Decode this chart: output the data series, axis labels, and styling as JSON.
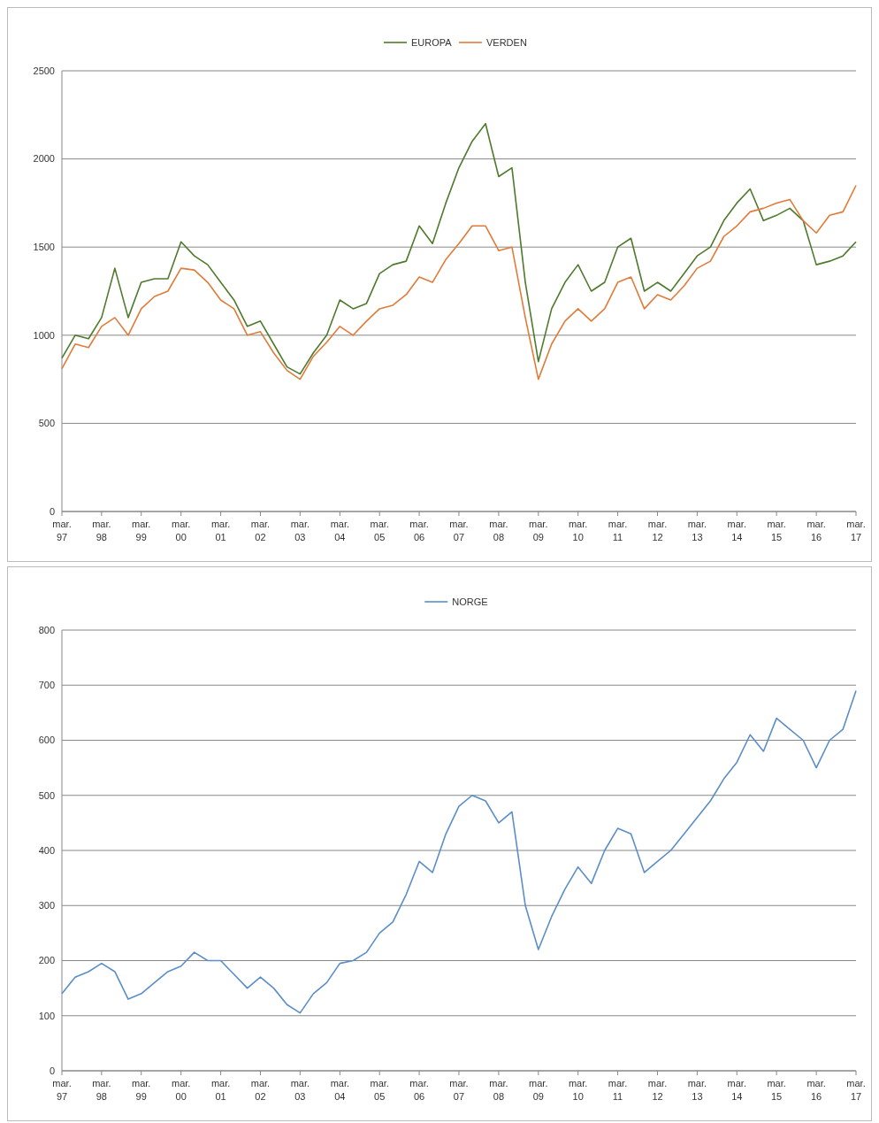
{
  "chart_data": [
    {
      "type": "line",
      "legend": "top",
      "grid": "y",
      "ylim": [
        0,
        2500
      ],
      "yticks": [
        0,
        500,
        1000,
        1500,
        2000,
        2500
      ],
      "xlim": [
        "1997-03",
        "2017-03"
      ],
      "xticks": [
        {
          "value": "1997-03",
          "label": "mar. 97"
        },
        {
          "value": "1998-03",
          "label": "mar. 98"
        },
        {
          "value": "1999-03",
          "label": "mar. 99"
        },
        {
          "value": "2000-03",
          "label": "mar. 00"
        },
        {
          "value": "2001-03",
          "label": "mar. 01"
        },
        {
          "value": "2002-03",
          "label": "mar. 02"
        },
        {
          "value": "2003-03",
          "label": "mar. 03"
        },
        {
          "value": "2004-03",
          "label": "mar. 04"
        },
        {
          "value": "2005-03",
          "label": "mar. 05"
        },
        {
          "value": "2006-03",
          "label": "mar. 06"
        },
        {
          "value": "2007-03",
          "label": "mar. 07"
        },
        {
          "value": "2008-03",
          "label": "mar. 08"
        },
        {
          "value": "2009-03",
          "label": "mar. 09"
        },
        {
          "value": "2010-03",
          "label": "mar. 10"
        },
        {
          "value": "2011-03",
          "label": "mar. 11"
        },
        {
          "value": "2012-03",
          "label": "mar. 12"
        },
        {
          "value": "2013-03",
          "label": "mar. 13"
        },
        {
          "value": "2014-03",
          "label": "mar. 14"
        },
        {
          "value": "2015-03",
          "label": "mar. 15"
        },
        {
          "value": "2016-03",
          "label": "mar. 16"
        },
        {
          "value": "2017-03",
          "label": "mar. 17"
        }
      ],
      "x": [
        "1997-03",
        "1997-07",
        "1997-11",
        "1998-03",
        "1998-07",
        "1998-11",
        "1999-03",
        "1999-07",
        "1999-11",
        "2000-03",
        "2000-07",
        "2000-11",
        "2001-03",
        "2001-07",
        "2001-11",
        "2002-03",
        "2002-07",
        "2002-11",
        "2003-03",
        "2003-07",
        "2003-11",
        "2004-03",
        "2004-07",
        "2004-11",
        "2005-03",
        "2005-07",
        "2005-11",
        "2006-03",
        "2006-07",
        "2006-11",
        "2007-03",
        "2007-07",
        "2007-11",
        "2008-03",
        "2008-07",
        "2008-11",
        "2009-03",
        "2009-07",
        "2009-11",
        "2010-03",
        "2010-07",
        "2010-11",
        "2011-03",
        "2011-07",
        "2011-11",
        "2012-03",
        "2012-07",
        "2012-11",
        "2013-03",
        "2013-07",
        "2013-11",
        "2014-03",
        "2014-07",
        "2014-11",
        "2015-03",
        "2015-07",
        "2015-11",
        "2016-03",
        "2016-07",
        "2016-11",
        "2017-03"
      ],
      "series": [
        {
          "name": "EUROPA",
          "color": "#4e7a2c",
          "values": [
            870,
            1000,
            980,
            1100,
            1380,
            1100,
            1300,
            1320,
            1320,
            1530,
            1450,
            1400,
            1300,
            1200,
            1050,
            1080,
            950,
            820,
            780,
            900,
            1000,
            1200,
            1150,
            1180,
            1350,
            1400,
            1420,
            1620,
            1520,
            1750,
            1950,
            2100,
            2200,
            1900,
            1950,
            1300,
            850,
            1150,
            1300,
            1400,
            1250,
            1300,
            1500,
            1550,
            1250,
            1300,
            1250,
            1350,
            1450,
            1500,
            1650,
            1750,
            1830,
            1650,
            1680,
            1720,
            1650,
            1400,
            1420,
            1450,
            1530
          ]
        },
        {
          "name": "VERDEN",
          "color": "#e07b39",
          "values": [
            810,
            950,
            930,
            1050,
            1100,
            1000,
            1150,
            1220,
            1250,
            1380,
            1370,
            1300,
            1200,
            1150,
            1000,
            1020,
            900,
            800,
            750,
            880,
            960,
            1050,
            1000,
            1080,
            1150,
            1170,
            1230,
            1330,
            1300,
            1430,
            1520,
            1620,
            1620,
            1480,
            1500,
            1100,
            750,
            950,
            1080,
            1150,
            1080,
            1150,
            1300,
            1330,
            1150,
            1230,
            1200,
            1280,
            1380,
            1420,
            1560,
            1620,
            1700,
            1720,
            1750,
            1770,
            1650,
            1580,
            1680,
            1700,
            1850
          ]
        }
      ]
    },
    {
      "type": "line",
      "legend": "top",
      "grid": "y",
      "ylim": [
        0,
        800
      ],
      "yticks": [
        0,
        100,
        200,
        300,
        400,
        500,
        600,
        700,
        800
      ],
      "xlim": [
        "1997-03",
        "2017-03"
      ],
      "xticks": [
        {
          "value": "1997-03",
          "label": "mar. 97"
        },
        {
          "value": "1998-03",
          "label": "mar. 98"
        },
        {
          "value": "1999-03",
          "label": "mar. 99"
        },
        {
          "value": "2000-03",
          "label": "mar. 00"
        },
        {
          "value": "2001-03",
          "label": "mar. 01"
        },
        {
          "value": "2002-03",
          "label": "mar. 02"
        },
        {
          "value": "2003-03",
          "label": "mar. 03"
        },
        {
          "value": "2004-03",
          "label": "mar. 04"
        },
        {
          "value": "2005-03",
          "label": "mar. 05"
        },
        {
          "value": "2006-03",
          "label": "mar. 06"
        },
        {
          "value": "2007-03",
          "label": "mar. 07"
        },
        {
          "value": "2008-03",
          "label": "mar. 08"
        },
        {
          "value": "2009-03",
          "label": "mar. 09"
        },
        {
          "value": "2010-03",
          "label": "mar. 10"
        },
        {
          "value": "2011-03",
          "label": "mar. 11"
        },
        {
          "value": "2012-03",
          "label": "mar. 12"
        },
        {
          "value": "2013-03",
          "label": "mar. 13"
        },
        {
          "value": "2014-03",
          "label": "mar. 14"
        },
        {
          "value": "2015-03",
          "label": "mar. 15"
        },
        {
          "value": "2016-03",
          "label": "mar. 16"
        },
        {
          "value": "2017-03",
          "label": "mar. 17"
        }
      ],
      "x": [
        "1997-03",
        "1997-07",
        "1997-11",
        "1998-03",
        "1998-07",
        "1998-11",
        "1999-03",
        "1999-07",
        "1999-11",
        "2000-03",
        "2000-07",
        "2000-11",
        "2001-03",
        "2001-07",
        "2001-11",
        "2002-03",
        "2002-07",
        "2002-11",
        "2003-03",
        "2003-07",
        "2003-11",
        "2004-03",
        "2004-07",
        "2004-11",
        "2005-03",
        "2005-07",
        "2005-11",
        "2006-03",
        "2006-07",
        "2006-11",
        "2007-03",
        "2007-07",
        "2007-11",
        "2008-03",
        "2008-07",
        "2008-11",
        "2009-03",
        "2009-07",
        "2009-11",
        "2010-03",
        "2010-07",
        "2010-11",
        "2011-03",
        "2011-07",
        "2011-11",
        "2012-03",
        "2012-07",
        "2012-11",
        "2013-03",
        "2013-07",
        "2013-11",
        "2014-03",
        "2014-07",
        "2014-11",
        "2015-03",
        "2015-07",
        "2015-11",
        "2016-03",
        "2016-07",
        "2016-11",
        "2017-03"
      ],
      "series": [
        {
          "name": "NORGE",
          "color": "#5b8ec8",
          "values": [
            140,
            170,
            180,
            195,
            180,
            130,
            140,
            160,
            180,
            190,
            215,
            200,
            200,
            175,
            150,
            170,
            150,
            120,
            105,
            140,
            160,
            195,
            200,
            215,
            250,
            270,
            320,
            380,
            360,
            430,
            480,
            500,
            490,
            450,
            470,
            300,
            220,
            280,
            330,
            370,
            340,
            400,
            440,
            430,
            360,
            380,
            400,
            430,
            460,
            490,
            530,
            560,
            610,
            580,
            640,
            620,
            600,
            550,
            600,
            620,
            690
          ]
        }
      ]
    }
  ]
}
